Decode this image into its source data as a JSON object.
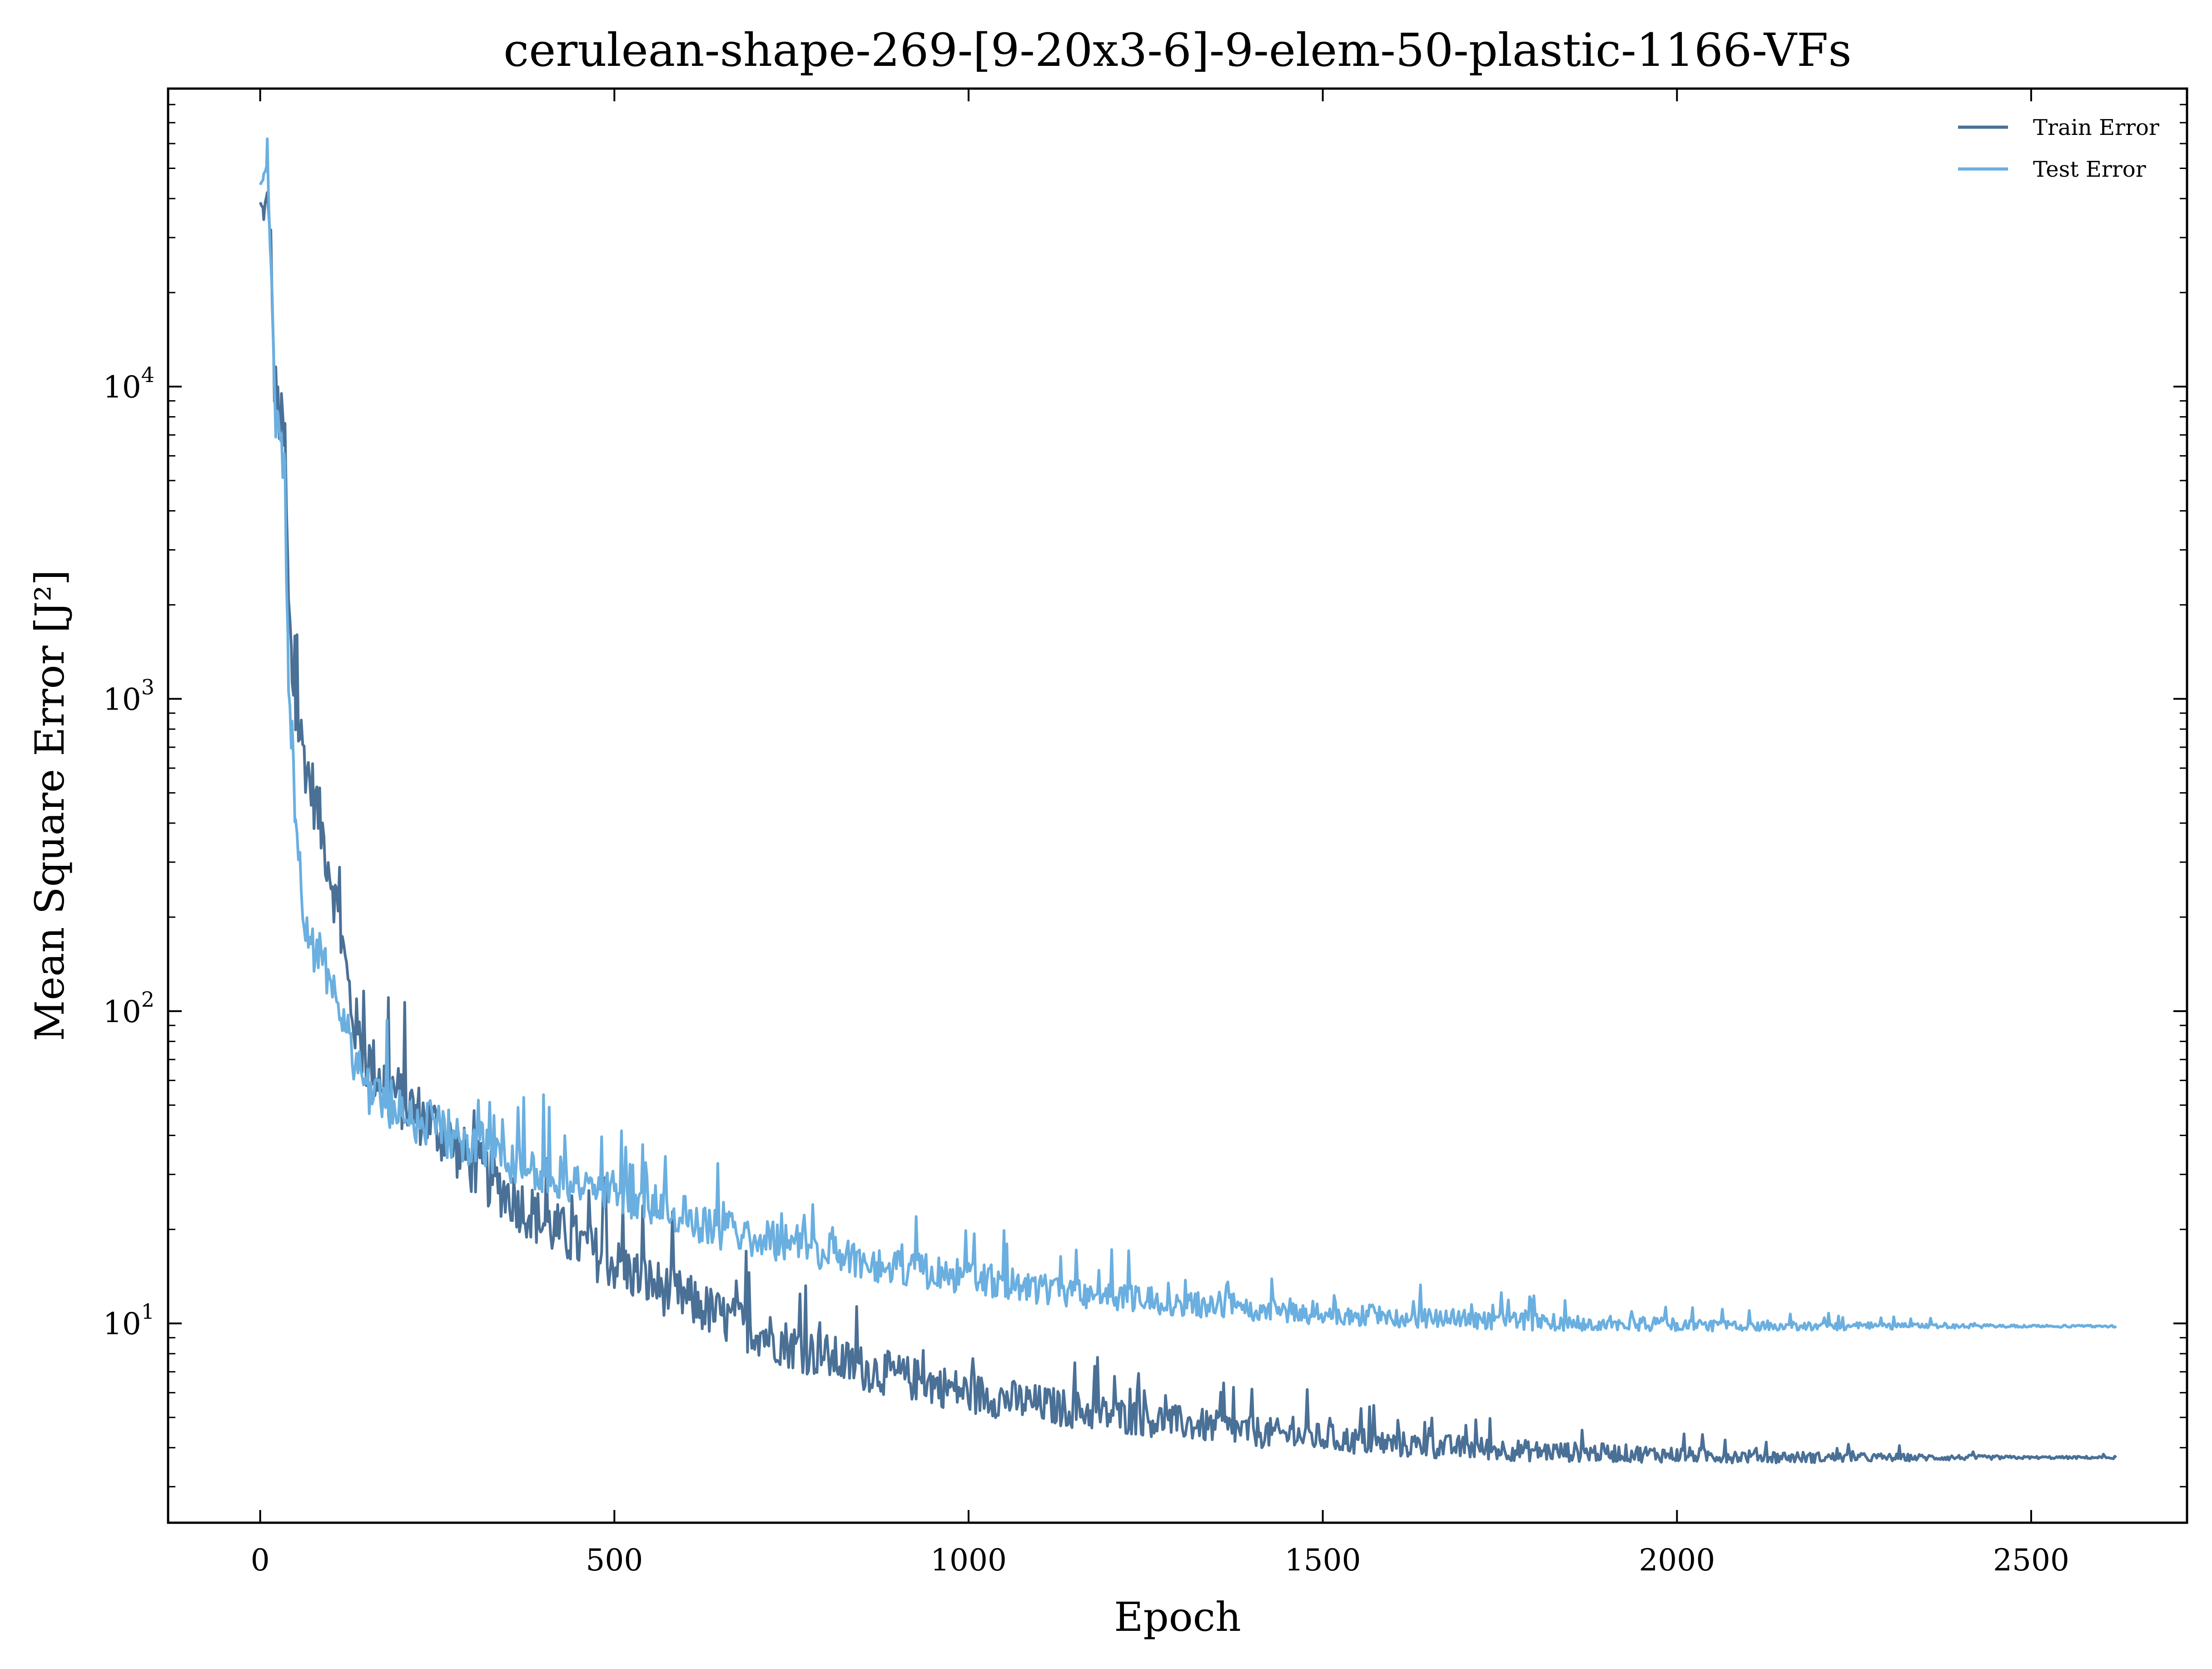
{
  "chart_data": {
    "type": "line",
    "title": "cerulean-shape-269-[9-20x3-6]-9-elem-50-plastic-1166-VFs",
    "xlabel": "Epoch",
    "ylabel": "Mean Square Error [J²]",
    "xlim": [
      -130,
      2720
    ],
    "ylim": [
      2.3,
      90000
    ],
    "yscale": "log",
    "x_ticks": [
      0,
      500,
      1000,
      1500,
      2000,
      2500
    ],
    "y_ticks": [
      {
        "value": 10,
        "base": "10",
        "exp": "1"
      },
      {
        "value": 100,
        "base": "10",
        "exp": "2"
      },
      {
        "value": 1000,
        "base": "10",
        "exp": "3"
      },
      {
        "value": 10000,
        "base": "10",
        "exp": "4"
      }
    ],
    "grid": false,
    "legend": "top-right",
    "series": [
      {
        "name": "Train Error",
        "color": "#4a7096",
        "x": [
          0,
          5,
          10,
          15,
          20,
          25,
          30,
          35,
          40,
          45,
          50,
          60,
          70,
          80,
          90,
          100,
          110,
          120,
          130,
          140,
          150,
          175,
          200,
          250,
          300,
          350,
          400,
          450,
          500,
          550,
          600,
          650,
          700,
          750,
          800,
          850,
          900,
          950,
          1000,
          1100,
          1200,
          1300,
          1400,
          1500,
          1600,
          1700,
          1800,
          1900,
          2000,
          2100,
          2200,
          2300,
          2400,
          2500,
          2620
        ],
        "y": [
          38000,
          36000,
          40000,
          30000,
          10000,
          8500,
          7500,
          6500,
          2000,
          1200,
          900,
          700,
          550,
          450,
          350,
          280,
          200,
          140,
          100,
          80,
          70,
          60,
          52,
          42,
          32,
          26,
          21,
          18,
          15.5,
          13.5,
          12,
          10.5,
          9.5,
          8.5,
          7.8,
          7.2,
          6.8,
          6.4,
          6.0,
          5.5,
          5.1,
          4.8,
          4.5,
          4.3,
          4.1,
          4.0,
          3.9,
          3.85,
          3.8,
          3.75,
          3.72,
          3.72,
          3.72,
          3.72,
          3.72
        ]
      },
      {
        "name": "Test Error",
        "color": "#6aafe0",
        "x": [
          0,
          5,
          10,
          15,
          20,
          25,
          30,
          35,
          40,
          45,
          50,
          60,
          70,
          80,
          90,
          100,
          110,
          120,
          130,
          140,
          150,
          175,
          200,
          250,
          300,
          350,
          400,
          450,
          500,
          550,
          600,
          650,
          700,
          750,
          800,
          850,
          900,
          950,
          1000,
          1100,
          1200,
          1300,
          1400,
          1500,
          1600,
          1700,
          1800,
          1900,
          2000,
          2100,
          2200,
          2300,
          2400,
          2500,
          2620
        ],
        "y": [
          42000,
          48000,
          55000,
          25000,
          8500,
          7000,
          6500,
          5500,
          1000,
          700,
          450,
          220,
          170,
          150,
          140,
          135,
          110,
          90,
          75,
          65,
          58,
          52,
          48,
          42,
          38,
          34,
          31,
          28,
          26,
          24,
          22,
          20,
          19,
          18,
          17,
          16,
          15,
          14.5,
          14,
          13,
          12.3,
          11.7,
          11.2,
          10.8,
          10.5,
          10.3,
          10.1,
          10.0,
          9.9,
          9.85,
          9.8,
          9.8,
          9.8,
          9.8,
          9.8
        ]
      }
    ]
  }
}
